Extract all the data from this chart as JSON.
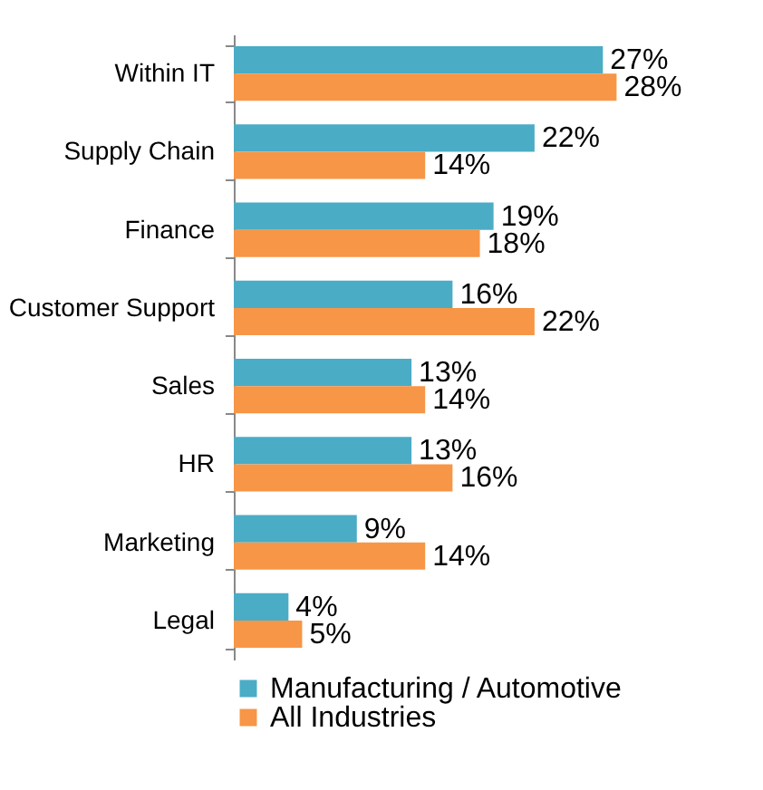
{
  "chart_data": {
    "type": "bar",
    "orientation": "horizontal",
    "categories": [
      "Within IT",
      "Supply Chain",
      "Finance",
      "Customer Support",
      "Sales",
      "HR",
      "Marketing",
      "Legal"
    ],
    "series": [
      {
        "name": "Manufacturing / Automotive",
        "color": "#4bacc6",
        "values": [
          27,
          22,
          19,
          16,
          13,
          13,
          9,
          4
        ],
        "value_labels": [
          "27%",
          "22%",
          "19%",
          "16%",
          "13%",
          "13%",
          "9%",
          "4%"
        ]
      },
      {
        "name": "All Industries",
        "color": "#f79646",
        "values": [
          28,
          14,
          18,
          22,
          14,
          16,
          14,
          5
        ],
        "value_labels": [
          "28%",
          "14%",
          "18%",
          "22%",
          "14%",
          "16%",
          "14%",
          "5%"
        ]
      }
    ],
    "legend": "bottom",
    "tick_labels": "y"
  }
}
